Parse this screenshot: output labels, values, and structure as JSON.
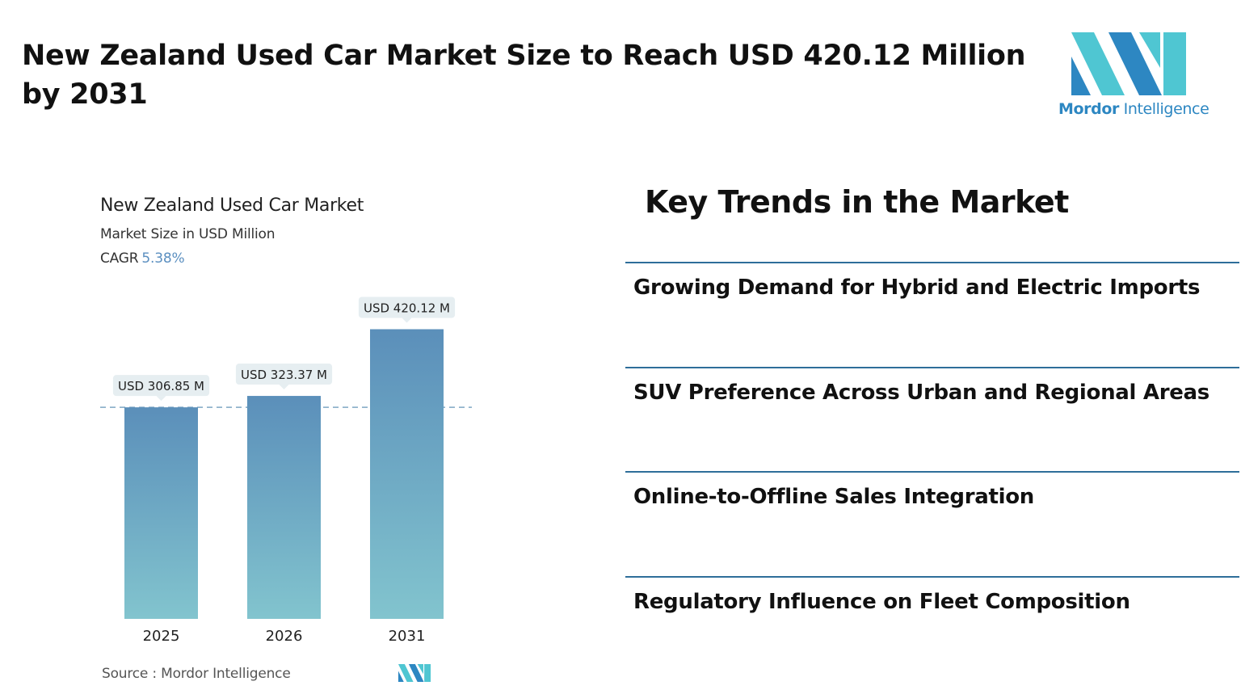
{
  "headline": "New Zealand Used Car Market Size to Reach USD 420.12 Million by 2031",
  "brand": {
    "name_bold": "Mordor",
    "name_light": "Intelligence",
    "primary_color": "#2d87c2",
    "secondary_color": "#4fc6d2"
  },
  "chart_data": {
    "type": "bar",
    "title": "New Zealand Used Car Market",
    "subtitle": "Market Size in USD Million",
    "cagr_label": "CAGR",
    "cagr_value": "5.38%",
    "categories": [
      "2025",
      "2026",
      "2031"
    ],
    "values": [
      306.85,
      323.37,
      420.12
    ],
    "data_labels": [
      "USD 306.85 M",
      "USD 323.37 M",
      "USD 420.12 M"
    ],
    "ylim": [
      0,
      450
    ],
    "reference_line": 306.85,
    "grid": false,
    "bar_color_top": "#5b8fba",
    "bar_color_bottom": "#82c4ce"
  },
  "source": "Source :  Mordor Intelligence",
  "trends": {
    "title": "Key Trends in the Market",
    "items": [
      "Growing Demand for Hybrid and Electric Imports",
      "SUV Preference Across Urban and Regional Areas",
      "Online-to-Offline Sales Integration",
      "Regulatory Influence on Fleet Composition"
    ],
    "divider_color": "#2e6e9a"
  }
}
